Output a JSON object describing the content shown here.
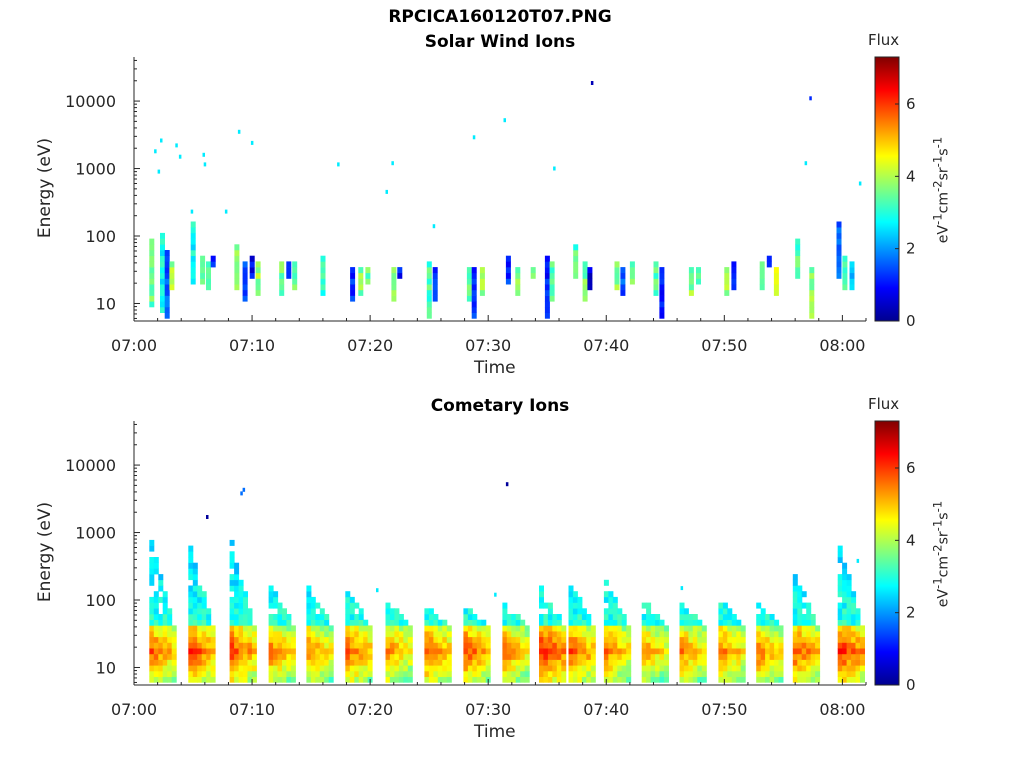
{
  "figure": {
    "title": "RPCICA160120T07.PNG"
  },
  "chart_data": [
    {
      "type": "heatmap",
      "title": "Solar Wind Ions",
      "xlabel": "Time",
      "ylabel": "Energy (eV)",
      "x_ticks": [
        "07:00",
        "07:10",
        "07:20",
        "07:30",
        "07:40",
        "07:50",
        "08:00"
      ],
      "x_range_minutes": [
        0,
        62
      ],
      "y_ticks": [
        10,
        100,
        1000,
        10000
      ],
      "y_range": [
        5.5,
        45000
      ],
      "y_scale": "log",
      "colorbar": {
        "title": "Flux",
        "label": "eV-1cm-2sr-1s-1",
        "range": [
          0,
          7.3
        ],
        "ticks": [
          0,
          2,
          4,
          6
        ],
        "colormap": "jet"
      },
      "bands": [
        {
          "t": 1.3,
          "y": [
            8,
            80
          ],
          "v": 3.5
        },
        {
          "t": 2.2,
          "y": [
            7,
            110
          ],
          "v": 2.8
        },
        {
          "t": 2.6,
          "y": [
            6,
            60
          ],
          "v": 1.5
        },
        {
          "t": 3.0,
          "y": [
            15,
            40
          ],
          "v": 3.9
        },
        {
          "t": 4.8,
          "y": [
            18,
            150
          ],
          "v": 2.8
        },
        {
          "t": 5.6,
          "y": [
            16,
            45
          ],
          "v": 3.6
        },
        {
          "t": 6.1,
          "y": [
            14,
            40
          ],
          "v": 3.4
        },
        {
          "t": 6.5,
          "y": [
            30,
            45
          ],
          "v": 1.0
        },
        {
          "t": 8.5,
          "y": [
            14,
            70
          ],
          "v": 3.6
        },
        {
          "t": 9.2,
          "y": [
            10,
            40
          ],
          "v": 1.4
        },
        {
          "t": 9.8,
          "y": [
            20,
            45
          ],
          "v": 0.9
        },
        {
          "t": 10.3,
          "y": [
            12,
            40
          ],
          "v": 3.8
        },
        {
          "t": 12.3,
          "y": [
            12,
            35
          ],
          "v": 3.5
        },
        {
          "t": 12.9,
          "y": [
            22,
            35
          ],
          "v": 0.9
        },
        {
          "t": 13.4,
          "y": [
            14,
            35
          ],
          "v": 3.6
        },
        {
          "t": 15.8,
          "y": [
            12,
            50
          ],
          "v": 3.2
        },
        {
          "t": 18.3,
          "y": [
            10,
            30
          ],
          "v": 1.2
        },
        {
          "t": 19.0,
          "y": [
            12,
            30
          ],
          "v": 3.7
        },
        {
          "t": 19.6,
          "y": [
            18,
            30
          ],
          "v": 3.4
        },
        {
          "t": 21.8,
          "y": [
            10,
            30
          ],
          "v": 3.8
        },
        {
          "t": 22.3,
          "y": [
            20,
            30
          ],
          "v": 1.1
        },
        {
          "t": 24.8,
          "y": [
            6,
            40
          ],
          "v": 3.3
        },
        {
          "t": 25.3,
          "y": [
            9,
            30
          ],
          "v": 1.1
        },
        {
          "t": 28.2,
          "y": [
            10,
            30
          ],
          "v": 3.4
        },
        {
          "t": 28.6,
          "y": [
            6,
            30
          ],
          "v": 1.2
        },
        {
          "t": 29.3,
          "y": [
            12,
            30
          ],
          "v": 3.7
        },
        {
          "t": 31.5,
          "y": [
            18,
            45
          ],
          "v": 1.2
        },
        {
          "t": 32.3,
          "y": [
            12,
            30
          ],
          "v": 3.6
        },
        {
          "t": 33.6,
          "y": [
            20,
            30
          ],
          "v": 3.8
        },
        {
          "t": 34.8,
          "y": [
            6,
            45
          ],
          "v": 1.2
        },
        {
          "t": 35.2,
          "y": [
            10,
            40
          ],
          "v": 3.4
        },
        {
          "t": 37.2,
          "y": [
            20,
            70
          ],
          "v": 3.3
        },
        {
          "t": 38.0,
          "y": [
            10,
            40
          ],
          "v": 3.6
        },
        {
          "t": 38.4,
          "y": [
            14,
            30
          ],
          "v": 0.8
        },
        {
          "t": 40.7,
          "y": [
            14,
            35
          ],
          "v": 3.7
        },
        {
          "t": 41.2,
          "y": [
            12,
            30
          ],
          "v": 1.4
        },
        {
          "t": 42.0,
          "y": [
            16,
            35
          ],
          "v": 3.6
        },
        {
          "t": 44.0,
          "y": [
            12,
            40
          ],
          "v": 3.3
        },
        {
          "t": 44.5,
          "y": [
            6,
            30
          ],
          "v": 1.2
        },
        {
          "t": 47.0,
          "y": [
            12,
            30
          ],
          "v": 3.7
        },
        {
          "t": 47.6,
          "y": [
            18,
            30
          ],
          "v": 3.6
        },
        {
          "t": 50.0,
          "y": [
            12,
            30
          ],
          "v": 3.8
        },
        {
          "t": 50.6,
          "y": [
            14,
            35
          ],
          "v": 0.9
        },
        {
          "t": 53.0,
          "y": [
            14,
            40
          ],
          "v": 3.5
        },
        {
          "t": 53.6,
          "y": [
            30,
            45
          ],
          "v": 1.0
        },
        {
          "t": 54.2,
          "y": [
            12,
            30
          ],
          "v": 4.1
        },
        {
          "t": 56.0,
          "y": [
            20,
            80
          ],
          "v": 3.3
        },
        {
          "t": 57.2,
          "y": [
            6,
            30
          ],
          "v": 3.7
        },
        {
          "t": 59.5,
          "y": [
            20,
            150
          ],
          "v": 1.5
        },
        {
          "t": 60.0,
          "y": [
            14,
            50
          ],
          "v": 3.3
        },
        {
          "t": 60.6,
          "y": [
            14,
            40
          ],
          "v": 2.2
        }
      ],
      "dots": [
        {
          "t": 1.7,
          "y": 1800,
          "v": 2.6
        },
        {
          "t": 2.0,
          "y": 900,
          "v": 2.6
        },
        {
          "t": 2.2,
          "y": 2600,
          "v": 2.6
        },
        {
          "t": 3.5,
          "y": 2200,
          "v": 2.6
        },
        {
          "t": 3.8,
          "y": 1500,
          "v": 2.6
        },
        {
          "t": 5.8,
          "y": 1600,
          "v": 2.6
        },
        {
          "t": 5.9,
          "y": 1150,
          "v": 2.6
        },
        {
          "t": 8.8,
          "y": 3500,
          "v": 2.6
        },
        {
          "t": 9.9,
          "y": 2400,
          "v": 2.6
        },
        {
          "t": 17.2,
          "y": 1150,
          "v": 2.6
        },
        {
          "t": 21.3,
          "y": 450,
          "v": 2.6
        },
        {
          "t": 21.8,
          "y": 1200,
          "v": 2.6
        },
        {
          "t": 25.3,
          "y": 140,
          "v": 2.6
        },
        {
          "t": 28.7,
          "y": 2900,
          "v": 2.6
        },
        {
          "t": 31.3,
          "y": 5200,
          "v": 2.6
        },
        {
          "t": 35.5,
          "y": 1000,
          "v": 2.6
        },
        {
          "t": 38.7,
          "y": 18500,
          "v": 0.4
        },
        {
          "t": 56.8,
          "y": 1200,
          "v": 2.6
        },
        {
          "t": 57.2,
          "y": 11000,
          "v": 1.2
        },
        {
          "t": 4.8,
          "y": 230,
          "v": 2.6
        },
        {
          "t": 7.7,
          "y": 230,
          "v": 2.6
        },
        {
          "t": 61.4,
          "y": 600,
          "v": 2.6
        }
      ]
    },
    {
      "type": "heatmap",
      "title": "Cometary Ions",
      "xlabel": "Time",
      "ylabel": "Energy (eV)",
      "x_ticks": [
        "07:00",
        "07:10",
        "07:20",
        "07:30",
        "07:40",
        "07:50",
        "08:00"
      ],
      "x_range_minutes": [
        0,
        62
      ],
      "y_ticks": [
        10,
        100,
        1000,
        10000
      ],
      "y_range": [
        5.5,
        45000
      ],
      "y_scale": "log",
      "colorbar": {
        "title": "Flux",
        "label": "eV-1cm-2sr-1s-1",
        "range": [
          0,
          7.3
        ],
        "ticks": [
          0,
          2,
          4,
          6
        ],
        "colormap": "jet"
      },
      "bursts": [
        {
          "t": 1.3,
          "top": 700,
          "peak": 5.8
        },
        {
          "t": 4.6,
          "top": 550,
          "peak": 6.1
        },
        {
          "t": 8.1,
          "top": 650,
          "peak": 6.0
        },
        {
          "t": 11.4,
          "top": 160,
          "peak": 5.6
        },
        {
          "t": 14.6,
          "top": 140,
          "peak": 5.5
        },
        {
          "t": 17.9,
          "top": 130,
          "peak": 5.8
        },
        {
          "t": 21.3,
          "top": 90,
          "peak": 5.5
        },
        {
          "t": 24.6,
          "top": 70,
          "peak": 5.8
        },
        {
          "t": 27.9,
          "top": 70,
          "peak": 5.9
        },
        {
          "t": 31.2,
          "top": 80,
          "peak": 5.6
        },
        {
          "t": 34.3,
          "top": 140,
          "peak": 6.3
        },
        {
          "t": 36.8,
          "top": 180,
          "peak": 5.9
        },
        {
          "t": 39.8,
          "top": 180,
          "peak": 5.6
        },
        {
          "t": 43.0,
          "top": 90,
          "peak": 5.4
        },
        {
          "t": 46.2,
          "top": 80,
          "peak": 5.5
        },
        {
          "t": 49.5,
          "top": 90,
          "peak": 5.6
        },
        {
          "t": 52.7,
          "top": 80,
          "peak": 5.6
        },
        {
          "t": 55.8,
          "top": 230,
          "peak": 5.9
        },
        {
          "t": 59.6,
          "top": 600,
          "peak": 6.2
        }
      ],
      "dots": [
        {
          "t": 6.1,
          "y": 1700,
          "v": 0.2
        },
        {
          "t": 9.2,
          "y": 4300,
          "v": 1.7
        },
        {
          "t": 9.0,
          "y": 3800,
          "v": 1.7
        },
        {
          "t": 31.5,
          "y": 5200,
          "v": 0.2
        },
        {
          "t": 20.5,
          "y": 140,
          "v": 2.6
        },
        {
          "t": 30.5,
          "y": 120,
          "v": 2.6
        },
        {
          "t": 61.2,
          "y": 380,
          "v": 2.6
        },
        {
          "t": 46.3,
          "y": 150,
          "v": 2.6
        }
      ]
    }
  ]
}
